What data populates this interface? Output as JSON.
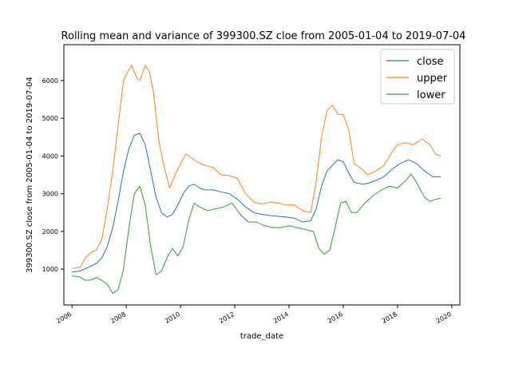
{
  "chart_data": {
    "type": "line",
    "title": "Rolling mean and variance of 399300.SZ cloe from 2005-01-04 to 2019-07-04",
    "xlabel": "trade_date",
    "ylabel": "399300.SZ close from 2005-01-04 to 2019-07-04",
    "xlim": [
      2005.7,
      2020.3
    ],
    "ylim": [
      50,
      6950
    ],
    "x_ticks": [
      2006,
      2008,
      2010,
      2012,
      2014,
      2016,
      2018,
      2020
    ],
    "y_ticks": [
      1000,
      2000,
      3000,
      4000,
      5000,
      6000
    ],
    "grid": false,
    "legend_position": "top-right",
    "series": [
      {
        "name": "close",
        "color": "#1f77b4",
        "points": [
          [
            2006.0,
            920
          ],
          [
            2006.3,
            950
          ],
          [
            2006.6,
            1050
          ],
          [
            2006.9,
            1150
          ],
          [
            2007.1,
            1300
          ],
          [
            2007.3,
            1600
          ],
          [
            2007.5,
            2100
          ],
          [
            2007.7,
            2800
          ],
          [
            2007.9,
            3600
          ],
          [
            2008.1,
            4200
          ],
          [
            2008.3,
            4550
          ],
          [
            2008.5,
            4600
          ],
          [
            2008.7,
            4300
          ],
          [
            2008.9,
            3600
          ],
          [
            2009.1,
            2900
          ],
          [
            2009.3,
            2500
          ],
          [
            2009.5,
            2380
          ],
          [
            2009.7,
            2450
          ],
          [
            2009.9,
            2700
          ],
          [
            2010.1,
            3000
          ],
          [
            2010.3,
            3200
          ],
          [
            2010.5,
            3250
          ],
          [
            2010.7,
            3150
          ],
          [
            2010.9,
            3100
          ],
          [
            2011.2,
            3100
          ],
          [
            2011.5,
            3050
          ],
          [
            2011.8,
            3000
          ],
          [
            2012.1,
            2850
          ],
          [
            2012.4,
            2650
          ],
          [
            2012.7,
            2500
          ],
          [
            2013.0,
            2450
          ],
          [
            2013.3,
            2420
          ],
          [
            2013.6,
            2400
          ],
          [
            2013.9,
            2380
          ],
          [
            2014.2,
            2350
          ],
          [
            2014.5,
            2250
          ],
          [
            2014.8,
            2280
          ],
          [
            2015.0,
            2600
          ],
          [
            2015.2,
            3200
          ],
          [
            2015.4,
            3600
          ],
          [
            2015.6,
            3750
          ],
          [
            2015.8,
            3900
          ],
          [
            2016.0,
            3850
          ],
          [
            2016.2,
            3550
          ],
          [
            2016.4,
            3300
          ],
          [
            2016.7,
            3250
          ],
          [
            2016.9,
            3270
          ],
          [
            2017.2,
            3350
          ],
          [
            2017.5,
            3450
          ],
          [
            2017.8,
            3650
          ],
          [
            2018.1,
            3800
          ],
          [
            2018.4,
            3900
          ],
          [
            2018.7,
            3800
          ],
          [
            2019.0,
            3600
          ],
          [
            2019.3,
            3450
          ],
          [
            2019.6,
            3450
          ]
        ]
      },
      {
        "name": "upper",
        "color": "#ff7f0e",
        "points": [
          [
            2006.0,
            1020
          ],
          [
            2006.3,
            1050
          ],
          [
            2006.5,
            1300
          ],
          [
            2006.7,
            1450
          ],
          [
            2006.9,
            1500
          ],
          [
            2007.1,
            1800
          ],
          [
            2007.3,
            2600
          ],
          [
            2007.5,
            3600
          ],
          [
            2007.7,
            4800
          ],
          [
            2007.9,
            6000
          ],
          [
            2008.1,
            6300
          ],
          [
            2008.2,
            6400
          ],
          [
            2008.4,
            6050
          ],
          [
            2008.5,
            6000
          ],
          [
            2008.7,
            6400
          ],
          [
            2008.85,
            6250
          ],
          [
            2009.0,
            5700
          ],
          [
            2009.2,
            4400
          ],
          [
            2009.4,
            3700
          ],
          [
            2009.6,
            3150
          ],
          [
            2009.8,
            3500
          ],
          [
            2010.0,
            3800
          ],
          [
            2010.2,
            4050
          ],
          [
            2010.4,
            3950
          ],
          [
            2010.6,
            3850
          ],
          [
            2010.9,
            3750
          ],
          [
            2011.2,
            3700
          ],
          [
            2011.5,
            3500
          ],
          [
            2011.8,
            3480
          ],
          [
            2012.1,
            3400
          ],
          [
            2012.4,
            3000
          ],
          [
            2012.7,
            2780
          ],
          [
            2013.0,
            2720
          ],
          [
            2013.3,
            2780
          ],
          [
            2013.6,
            2750
          ],
          [
            2013.9,
            2700
          ],
          [
            2014.2,
            2700
          ],
          [
            2014.5,
            2550
          ],
          [
            2014.8,
            2500
          ],
          [
            2015.0,
            3300
          ],
          [
            2015.2,
            4500
          ],
          [
            2015.4,
            5200
          ],
          [
            2015.6,
            5350
          ],
          [
            2015.8,
            5100
          ],
          [
            2016.0,
            5100
          ],
          [
            2016.2,
            4700
          ],
          [
            2016.4,
            3800
          ],
          [
            2016.7,
            3650
          ],
          [
            2016.9,
            3500
          ],
          [
            2017.2,
            3600
          ],
          [
            2017.5,
            3750
          ],
          [
            2017.8,
            4100
          ],
          [
            2018.0,
            4300
          ],
          [
            2018.3,
            4350
          ],
          [
            2018.6,
            4300
          ],
          [
            2018.9,
            4450
          ],
          [
            2019.2,
            4300
          ],
          [
            2019.4,
            4050
          ],
          [
            2019.6,
            4000
          ]
        ]
      },
      {
        "name": "lower",
        "color": "#2ca02c",
        "points": [
          [
            2006.0,
            820
          ],
          [
            2006.3,
            790
          ],
          [
            2006.5,
            700
          ],
          [
            2006.7,
            710
          ],
          [
            2006.9,
            780
          ],
          [
            2007.1,
            700
          ],
          [
            2007.3,
            600
          ],
          [
            2007.5,
            360
          ],
          [
            2007.7,
            450
          ],
          [
            2007.9,
            1000
          ],
          [
            2008.1,
            2100
          ],
          [
            2008.3,
            3000
          ],
          [
            2008.5,
            3200
          ],
          [
            2008.7,
            2700
          ],
          [
            2008.9,
            1600
          ],
          [
            2009.1,
            850
          ],
          [
            2009.3,
            950
          ],
          [
            2009.5,
            1300
          ],
          [
            2009.7,
            1550
          ],
          [
            2009.9,
            1350
          ],
          [
            2010.1,
            1600
          ],
          [
            2010.3,
            2300
          ],
          [
            2010.5,
            2750
          ],
          [
            2010.7,
            2650
          ],
          [
            2011.0,
            2550
          ],
          [
            2011.3,
            2600
          ],
          [
            2011.6,
            2650
          ],
          [
            2011.9,
            2750
          ],
          [
            2012.2,
            2450
          ],
          [
            2012.5,
            2250
          ],
          [
            2012.8,
            2250
          ],
          [
            2013.1,
            2150
          ],
          [
            2013.4,
            2100
          ],
          [
            2013.7,
            2100
          ],
          [
            2014.0,
            2150
          ],
          [
            2014.3,
            2100
          ],
          [
            2014.6,
            2050
          ],
          [
            2014.9,
            2000
          ],
          [
            2015.1,
            1550
          ],
          [
            2015.3,
            1400
          ],
          [
            2015.5,
            1500
          ],
          [
            2015.7,
            2100
          ],
          [
            2015.9,
            2750
          ],
          [
            2016.1,
            2800
          ],
          [
            2016.3,
            2500
          ],
          [
            2016.5,
            2500
          ],
          [
            2016.8,
            2750
          ],
          [
            2017.1,
            2950
          ],
          [
            2017.4,
            3100
          ],
          [
            2017.7,
            3200
          ],
          [
            2018.0,
            3150
          ],
          [
            2018.3,
            3350
          ],
          [
            2018.5,
            3520
          ],
          [
            2018.7,
            3300
          ],
          [
            2019.0,
            2900
          ],
          [
            2019.2,
            2800
          ],
          [
            2019.4,
            2850
          ],
          [
            2019.6,
            2880
          ]
        ]
      }
    ]
  }
}
